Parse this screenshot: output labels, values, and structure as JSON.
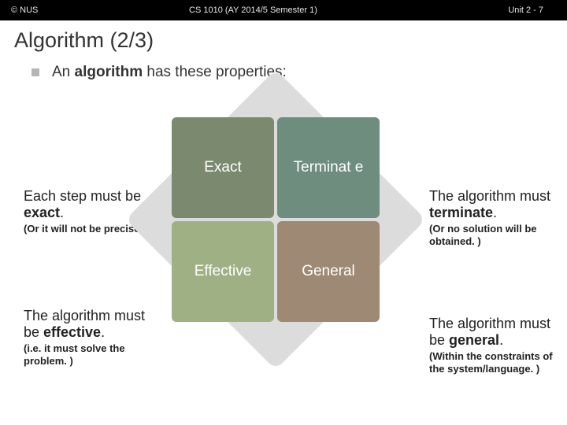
{
  "topbar": {
    "left": "© NUS",
    "mid": "CS 1010 (AY 2014/5 Semester 1)",
    "right": "Unit 2 - 7",
    "bg_color": "#000000",
    "text_color": "#e6e6e6"
  },
  "title": "Algorithm (2/3)",
  "intro": {
    "prefix": "An ",
    "bold": "algorithm",
    "suffix": " has these properties:"
  },
  "diagram": {
    "diamond_bg": "#dcdcdc",
    "quads": {
      "tl": {
        "label": "Exact",
        "color": "#7b8a6f"
      },
      "tr": {
        "label": "Terminat\ne",
        "color": "#6f8d7f"
      },
      "bl": {
        "label": "Effective",
        "color": "#9fb084"
      },
      "br": {
        "label": "General",
        "color": "#9e8a74"
      }
    }
  },
  "notes": {
    "tl": {
      "main_pre": "Each step must be ",
      "main_bold": "exact",
      "main_post": ".",
      "sub": "(Or it will not be precise. )"
    },
    "bl": {
      "main_pre": "The algorithm must be ",
      "main_bold": "effective",
      "main_post": ".",
      "sub": "(i.e. it must solve the problem. )"
    },
    "tr": {
      "main_pre": "The algorithm must ",
      "main_bold": "terminate",
      "main_post": ".",
      "sub": "(Or no solution will be obtained. )"
    },
    "br": {
      "main_pre": "The algorithm must be ",
      "main_bold": "general",
      "main_post": ".",
      "sub": "(Within the constraints of the system/language. )"
    }
  }
}
